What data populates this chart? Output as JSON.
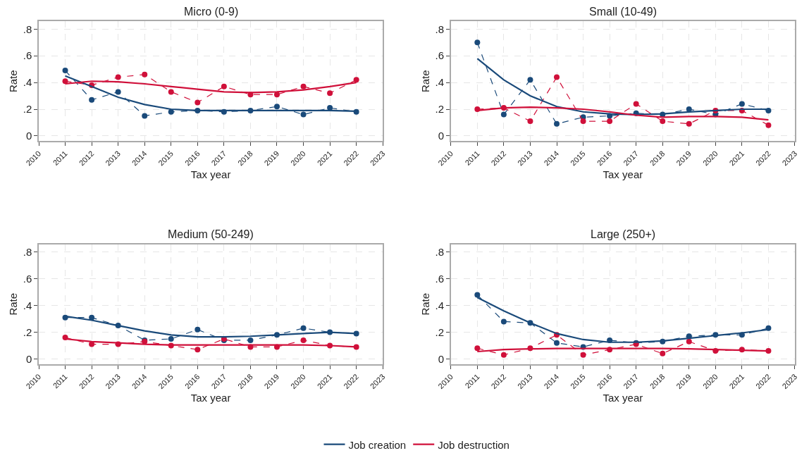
{
  "chart_data": [
    {
      "type": "line",
      "title": "Micro (0-9)",
      "xlabel": "Tax year",
      "ylabel": "Rate",
      "x": [
        2011,
        2012,
        2013,
        2014,
        2015,
        2016,
        2017,
        2018,
        2019,
        2020,
        2021,
        2022
      ],
      "xlim": [
        2010,
        2023
      ],
      "xticks": [
        2010,
        2011,
        2012,
        2013,
        2014,
        2015,
        2016,
        2017,
        2018,
        2019,
        2020,
        2021,
        2022,
        2023
      ],
      "ylim": [
        -0.04,
        0.86
      ],
      "yticks": [
        0,
        {
          "value": 0.2,
          "label": ".2"
        },
        {
          "value": 0.4,
          "label": ".4"
        },
        {
          "value": 0.6,
          "label": ".6"
        },
        {
          "value": 0.8,
          "label": ".8"
        }
      ],
      "grid": true,
      "legend": "bottom",
      "series": [
        {
          "color": "#1a4a7a",
          "line_style": "dashed",
          "marker": "circle",
          "values": [
            0.49,
            0.27,
            0.33,
            0.15,
            0.18,
            0.19,
            0.18,
            0.19,
            0.22,
            0.16,
            0.21,
            0.18
          ]
        },
        {
          "color": "#d0103a",
          "line_style": "dashed",
          "marker": "circle",
          "values": [
            0.41,
            0.38,
            0.44,
            0.46,
            0.33,
            0.25,
            0.37,
            0.31,
            0.31,
            0.37,
            0.32,
            0.42
          ]
        },
        {
          "name": "Job creation",
          "color": "#1a4a7a",
          "line_style": "solid",
          "marker": "none",
          "values": [
            0.45,
            0.37,
            0.29,
            0.235,
            0.2,
            0.19,
            0.19,
            0.19,
            0.19,
            0.19,
            0.19,
            0.185
          ]
        },
        {
          "name": "Job destruction",
          "color": "#d0103a",
          "line_style": "solid",
          "marker": "none",
          "values": [
            0.39,
            0.41,
            0.405,
            0.39,
            0.37,
            0.35,
            0.33,
            0.325,
            0.33,
            0.345,
            0.37,
            0.4
          ]
        }
      ]
    },
    {
      "type": "line",
      "title": "Small (10-49)",
      "xlabel": "Tax year",
      "ylabel": "Rate",
      "x": [
        2011,
        2012,
        2013,
        2014,
        2015,
        2016,
        2017,
        2018,
        2019,
        2020,
        2021,
        2022
      ],
      "xlim": [
        2010,
        2023
      ],
      "xticks": [
        2010,
        2011,
        2012,
        2013,
        2014,
        2015,
        2016,
        2017,
        2018,
        2019,
        2020,
        2021,
        2022,
        2023
      ],
      "ylim": [
        -0.04,
        0.86
      ],
      "yticks": [
        0,
        {
          "value": 0.2,
          "label": ".2"
        },
        {
          "value": 0.4,
          "label": ".4"
        },
        {
          "value": 0.6,
          "label": ".6"
        },
        {
          "value": 0.8,
          "label": ".8"
        }
      ],
      "grid": true,
      "series": [
        {
          "color": "#1a4a7a",
          "line_style": "dashed",
          "marker": "circle",
          "values": [
            0.7,
            0.16,
            0.42,
            0.09,
            0.14,
            0.15,
            0.17,
            0.16,
            0.2,
            0.16,
            0.24,
            0.19
          ]
        },
        {
          "color": "#d0103a",
          "line_style": "dashed",
          "marker": "circle",
          "values": [
            0.2,
            0.21,
            0.11,
            0.44,
            0.11,
            0.11,
            0.24,
            0.11,
            0.09,
            0.19,
            0.19,
            0.08
          ]
        },
        {
          "color": "#1a4a7a",
          "line_style": "solid",
          "marker": "none",
          "values": [
            0.58,
            0.42,
            0.3,
            0.22,
            0.18,
            0.165,
            0.16,
            0.165,
            0.18,
            0.19,
            0.2,
            0.2
          ]
        },
        {
          "color": "#d0103a",
          "line_style": "solid",
          "marker": "none",
          "values": [
            0.19,
            0.21,
            0.215,
            0.21,
            0.2,
            0.18,
            0.155,
            0.14,
            0.145,
            0.145,
            0.14,
            0.12
          ]
        }
      ]
    },
    {
      "type": "line",
      "title": "Medium (50-249)",
      "xlabel": "Tax year",
      "ylabel": "Rate",
      "x": [
        2011,
        2012,
        2013,
        2014,
        2015,
        2016,
        2017,
        2018,
        2019,
        2020,
        2021,
        2022
      ],
      "xlim": [
        2010,
        2023
      ],
      "xticks": [
        2010,
        2011,
        2012,
        2013,
        2014,
        2015,
        2016,
        2017,
        2018,
        2019,
        2020,
        2021,
        2022,
        2023
      ],
      "ylim": [
        -0.04,
        0.86
      ],
      "yticks": [
        0,
        {
          "value": 0.2,
          "label": ".2"
        },
        {
          "value": 0.4,
          "label": ".4"
        },
        {
          "value": 0.6,
          "label": ".6"
        },
        {
          "value": 0.8,
          "label": ".8"
        }
      ],
      "grid": true,
      "series": [
        {
          "color": "#1a4a7a",
          "line_style": "dashed",
          "marker": "circle",
          "values": [
            0.31,
            0.31,
            0.25,
            0.14,
            0.15,
            0.22,
            0.14,
            0.14,
            0.18,
            0.23,
            0.2,
            0.19
          ]
        },
        {
          "color": "#d0103a",
          "line_style": "dashed",
          "marker": "circle",
          "values": [
            0.16,
            0.11,
            0.11,
            0.13,
            0.1,
            0.07,
            0.15,
            0.09,
            0.09,
            0.14,
            0.1,
            0.09
          ]
        },
        {
          "color": "#1a4a7a",
          "line_style": "solid",
          "marker": "none",
          "values": [
            0.32,
            0.29,
            0.25,
            0.21,
            0.18,
            0.165,
            0.165,
            0.17,
            0.18,
            0.19,
            0.2,
            0.19
          ]
        },
        {
          "color": "#d0103a",
          "line_style": "solid",
          "marker": "none",
          "values": [
            0.15,
            0.13,
            0.12,
            0.11,
            0.105,
            0.105,
            0.105,
            0.105,
            0.105,
            0.105,
            0.1,
            0.09
          ]
        }
      ]
    },
    {
      "type": "line",
      "title": "Large (250+)",
      "xlabel": "Tax year",
      "ylabel": "Rate",
      "x": [
        2011,
        2012,
        2013,
        2014,
        2015,
        2016,
        2017,
        2018,
        2019,
        2020,
        2021,
        2022
      ],
      "xlim": [
        2010,
        2023
      ],
      "xticks": [
        2010,
        2011,
        2012,
        2013,
        2014,
        2015,
        2016,
        2017,
        2018,
        2019,
        2020,
        2021,
        2022,
        2023
      ],
      "ylim": [
        -0.04,
        0.86
      ],
      "yticks": [
        0,
        {
          "value": 0.2,
          "label": ".2"
        },
        {
          "value": 0.4,
          "label": ".4"
        },
        {
          "value": 0.6,
          "label": ".6"
        },
        {
          "value": 0.8,
          "label": ".8"
        }
      ],
      "grid": true,
      "series": [
        {
          "color": "#1a4a7a",
          "line_style": "dashed",
          "marker": "circle",
          "values": [
            0.48,
            0.28,
            0.27,
            0.12,
            0.09,
            0.14,
            0.12,
            0.13,
            0.17,
            0.18,
            0.18,
            0.23
          ]
        },
        {
          "color": "#d0103a",
          "line_style": "dashed",
          "marker": "circle",
          "values": [
            0.08,
            0.03,
            0.08,
            0.18,
            0.03,
            0.07,
            0.11,
            0.04,
            0.13,
            0.06,
            0.07,
            0.06
          ]
        },
        {
          "color": "#1a4a7a",
          "line_style": "solid",
          "marker": "none",
          "values": [
            0.46,
            0.36,
            0.27,
            0.19,
            0.145,
            0.125,
            0.125,
            0.135,
            0.155,
            0.175,
            0.195,
            0.22
          ]
        },
        {
          "color": "#d0103a",
          "line_style": "solid",
          "marker": "none",
          "values": [
            0.055,
            0.07,
            0.075,
            0.078,
            0.078,
            0.078,
            0.078,
            0.078,
            0.075,
            0.07,
            0.065,
            0.06
          ]
        }
      ]
    }
  ]
}
